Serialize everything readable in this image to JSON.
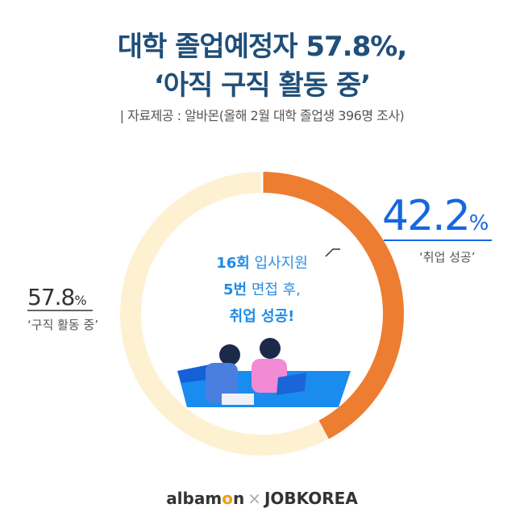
{
  "header": {
    "title_line1": "대학 졸업예정자 57.8%,",
    "title_line2": "‘아직 구직 활동 중’",
    "source": "| 자료제공 : 알바몬(올해 2월 대학 졸업생 396명 조사)"
  },
  "chart_data": {
    "type": "pie",
    "donut": true,
    "categories": [
      "취업 성공",
      "구직 활동 중"
    ],
    "values": [
      42.2,
      57.8
    ],
    "colors": [
      "#ED7D31",
      "#FDF1D2"
    ],
    "labels": [
      {
        "value": "42.2",
        "unit": "%",
        "text": "‘취업 성공’"
      },
      {
        "value": "57.8",
        "unit": "%",
        "text": "‘구직 활동 중’"
      }
    ]
  },
  "center": {
    "line1_bold": "16회",
    "line1": " 입사지원",
    "line2_bold": "5번",
    "line2": " 면접 후,",
    "line3_bold": "취업 성공!"
  },
  "footer": {
    "logo1_a": "albam",
    "logo1_o": "o",
    "logo1_b": "n",
    "sep": "×",
    "logo2": "JOBKOREA"
  }
}
